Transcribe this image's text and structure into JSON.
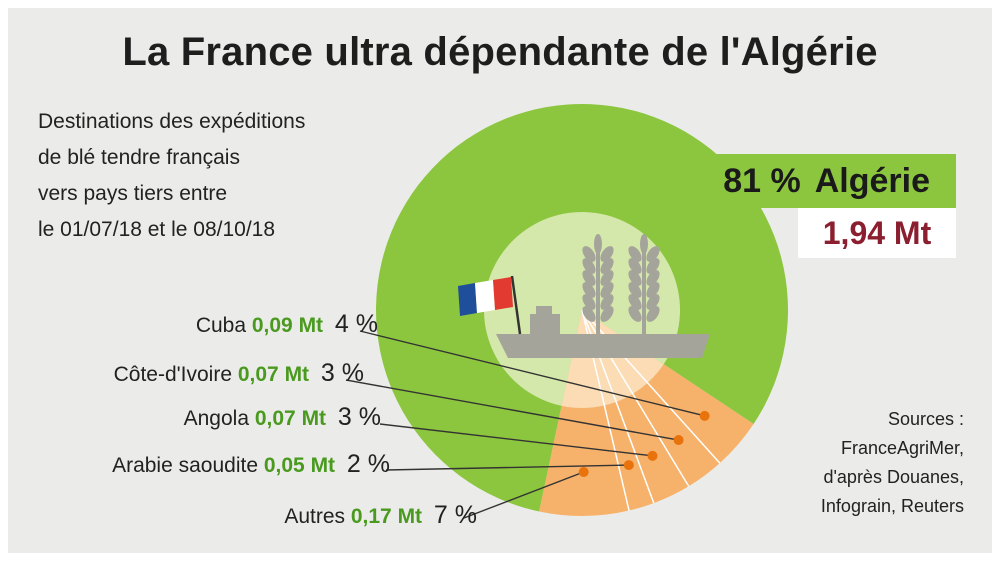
{
  "title": "La France ultra dépendante de l'Algérie",
  "subtitle_lines": [
    "Destinations des expéditions",
    "de blé tendre français",
    "vers pays tiers entre",
    "le 01/07/18 et le 08/10/18"
  ],
  "main": {
    "pct_label": "81 %",
    "name": "Algérie",
    "value_label": "1,94 Mt"
  },
  "slices": [
    {
      "name": "Cuba",
      "value_label": "0,09 Mt",
      "pct_label": "4 %"
    },
    {
      "name": "Côte-d'Ivoire",
      "value_label": "0,07 Mt",
      "pct_label": "3 %"
    },
    {
      "name": "Angola",
      "value_label": "0,07 Mt",
      "pct_label": "3 %"
    },
    {
      "name": "Arabie saoudite",
      "value_label": "0,05 Mt",
      "pct_label": "2 %"
    },
    {
      "name": "Autres",
      "value_label": "0,17 Mt",
      "pct_label": "7 %"
    }
  ],
  "sources_lines": [
    "Sources :",
    "FranceAgriMer,",
    "d'après Douanes,",
    "Infograin, Reuters"
  ],
  "colors": {
    "background": "#ebebe9",
    "algeria": "#8cc63f",
    "algeria_inner": "#d5e8ab",
    "others": "#f6b26b",
    "others_inner": "#fbdcb5",
    "illustration": "#a4a49a",
    "value_green": "#4a9a1f",
    "value_red": "#8b1e2f"
  },
  "chart_data": {
    "type": "pie",
    "title": "La France ultra dépendante de l'Algérie",
    "categories": [
      "Algérie",
      "Cuba",
      "Côte-d'Ivoire",
      "Angola",
      "Arabie saoudite",
      "Autres"
    ],
    "values": [
      81,
      4,
      3,
      3,
      2,
      7
    ],
    "volumes_mt": [
      1.94,
      0.09,
      0.07,
      0.07,
      0.05,
      0.17
    ],
    "unit": "%"
  }
}
